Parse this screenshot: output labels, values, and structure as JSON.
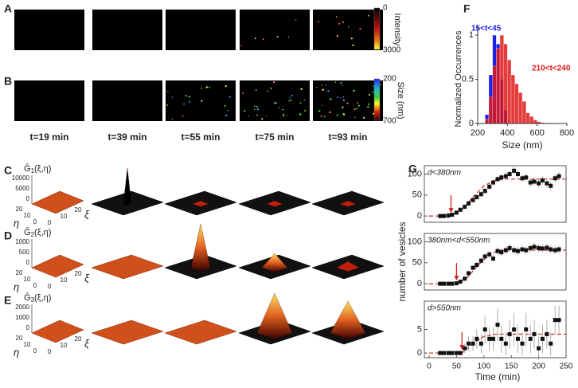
{
  "panel_labels": [
    "A",
    "B",
    "C",
    "D",
    "E",
    "F",
    "G"
  ],
  "images": [
    {
      "colorbar_label": "Intensity",
      "colorbar_ticks": [
        0,
        3000
      ]
    },
    {
      "colorbar_label": "Size (nm)",
      "colorbar_ticks": [
        200,
        700
      ]
    }
  ],
  "time_labels": [
    "t=19 min",
    "t=39 min",
    "t=55 min",
    "t=75 min",
    "t=93 min"
  ],
  "surfaces": [
    {
      "label_base": "Ĝ",
      "label_sub": "1",
      "label_args": "(ξ,η)",
      "z_ticks": [
        10000,
        5000,
        0
      ],
      "eta_ticks": [
        20,
        10,
        0
      ],
      "xi_ticks": [
        0,
        10,
        20
      ],
      "eta": "η",
      "xi": "ξ"
    },
    {
      "label_base": "Ĝ",
      "label_sub": "2",
      "label_args": "(ξ,η)",
      "z_ticks": [
        1000,
        500,
        0
      ],
      "eta_ticks": [
        20,
        10,
        0
      ],
      "xi_ticks": [
        0,
        10,
        20
      ],
      "eta": "η",
      "xi": "ξ"
    },
    {
      "label_base": "Ĝ",
      "label_sub": "3",
      "label_args": "(ξ,η)",
      "z_ticks": [
        2000,
        1000,
        0
      ],
      "eta_ticks": [
        20,
        10,
        0
      ],
      "xi_ticks": [
        0,
        10,
        20
      ],
      "eta": "η",
      "xi": "ξ"
    }
  ],
  "chart_data": [
    {
      "type": "histogram",
      "xlabel": "Size (nm)",
      "ylabel": "Normalized Occurrences",
      "xlim": [
        200,
        800
      ],
      "xticks": [
        200,
        400,
        600,
        800
      ],
      "ylim": [
        0,
        1.1
      ],
      "yticks": [
        0,
        0.5,
        1
      ],
      "series": [
        {
          "name": "15<t<45",
          "color": "#1f1fe8",
          "bins": [
            250,
            275,
            300,
            325,
            350,
            375,
            400
          ],
          "values": [
            0.1,
            0.55,
            1.0,
            0.9,
            0.5,
            0.15
          ]
        },
        {
          "name": "210<t<240",
          "color": "#e01a1a",
          "bins": [
            250,
            275,
            300,
            325,
            350,
            375,
            400,
            425,
            450,
            475,
            500,
            525,
            550,
            575,
            600,
            625,
            650,
            675,
            700
          ],
          "values": [
            0.05,
            0.3,
            0.65,
            0.85,
            1.0,
            0.9,
            0.72,
            0.55,
            0.45,
            0.35,
            0.25,
            0.12,
            0.08,
            0.04,
            0.02,
            0.01,
            0.005,
            0
          ]
        }
      ]
    },
    {
      "type": "scatter",
      "label": "d<380nm",
      "xlim": [
        0,
        250
      ],
      "ylim": [
        -15,
        120
      ],
      "yticks": [
        0,
        50,
        100
      ],
      "arrow_x": 40,
      "x": [
        20,
        27,
        35,
        42,
        50,
        57,
        65,
        72,
        80,
        87,
        95,
        102,
        110,
        117,
        125,
        132,
        140,
        147,
        155,
        162,
        170,
        177,
        185,
        192,
        200,
        207,
        215,
        222,
        230,
        237
      ],
      "values": [
        0,
        0,
        1,
        3,
        8,
        15,
        22,
        30,
        38,
        45,
        52,
        60,
        70,
        80,
        88,
        92,
        95,
        100,
        108,
        100,
        90,
        92,
        80,
        82,
        78,
        85,
        78,
        72,
        90,
        95
      ],
      "errors": [
        3,
        3,
        3,
        4,
        5,
        5,
        6,
        6,
        7,
        7,
        7,
        8,
        8,
        8,
        8,
        9,
        9,
        9,
        9,
        9,
        9,
        9,
        10,
        10,
        10,
        10,
        10,
        10,
        10,
        10
      ],
      "fit": {
        "x": [
          0,
          40,
          60,
          80,
          100,
          120,
          140,
          250
        ],
        "values": [
          0,
          0,
          15,
          45,
          72,
          85,
          88,
          88
        ]
      }
    },
    {
      "type": "scatter",
      "label": "380nm<d<550nm",
      "ylabel": "number of vesicles",
      "xlim": [
        0,
        250
      ],
      "ylim": [
        -15,
        120
      ],
      "yticks": [
        0,
        50,
        100
      ],
      "arrow_x": 50,
      "x": [
        20,
        27,
        35,
        42,
        50,
        57,
        65,
        72,
        80,
        87,
        95,
        102,
        110,
        117,
        125,
        132,
        140,
        147,
        155,
        162,
        170,
        177,
        185,
        192,
        200,
        207,
        215,
        222,
        230,
        237
      ],
      "values": [
        0,
        0,
        0,
        0,
        1,
        5,
        12,
        25,
        38,
        45,
        55,
        65,
        70,
        60,
        78,
        75,
        80,
        85,
        80,
        78,
        82,
        80,
        85,
        88,
        85,
        84,
        86,
        82,
        80,
        82
      ],
      "errors": [
        2,
        2,
        2,
        2,
        3,
        4,
        5,
        6,
        7,
        7,
        8,
        8,
        9,
        9,
        9,
        9,
        10,
        10,
        10,
        10,
        10,
        10,
        10,
        10,
        10,
        10,
        10,
        10,
        10,
        10
      ],
      "fit": {
        "x": [
          0,
          50,
          70,
          90,
          110,
          130,
          250
        ],
        "values": [
          0,
          0,
          15,
          45,
          70,
          80,
          80
        ]
      }
    },
    {
      "type": "scatter",
      "label": "d>550nm",
      "xlabel": "Time (min)",
      "xlim": [
        0,
        250
      ],
      "xticks": [
        0,
        50,
        100,
        150,
        200,
        250
      ],
      "ylim": [
        -1,
        11
      ],
      "yticks": [
        0,
        5
      ],
      "arrow_x": 60,
      "x": [
        20,
        27,
        35,
        42,
        50,
        57,
        65,
        72,
        80,
        87,
        95,
        102,
        110,
        117,
        125,
        132,
        140,
        147,
        155,
        162,
        170,
        177,
        185,
        192,
        200,
        207,
        215,
        222,
        230,
        237
      ],
      "values": [
        0,
        0,
        0,
        0,
        0,
        0,
        1,
        2,
        2,
        3,
        2,
        5,
        3,
        3,
        6,
        3,
        2,
        4,
        5,
        3,
        2,
        5,
        3,
        4,
        1,
        3,
        4,
        2,
        7,
        7
      ],
      "errors": [
        0.3,
        0.3,
        0.3,
        0.3,
        0.3,
        0.5,
        1,
        1.5,
        1.5,
        2,
        2,
        3,
        2.5,
        2.5,
        3.5,
        3,
        2.5,
        3,
        3.5,
        3,
        2.5,
        3.5,
        3,
        3,
        2.5,
        3,
        3,
        2.5,
        3,
        3
      ],
      "fit": {
        "x": [
          0,
          60,
          80,
          100,
          120,
          250
        ],
        "values": [
          0,
          0,
          2,
          3.5,
          4,
          4
        ]
      }
    }
  ]
}
